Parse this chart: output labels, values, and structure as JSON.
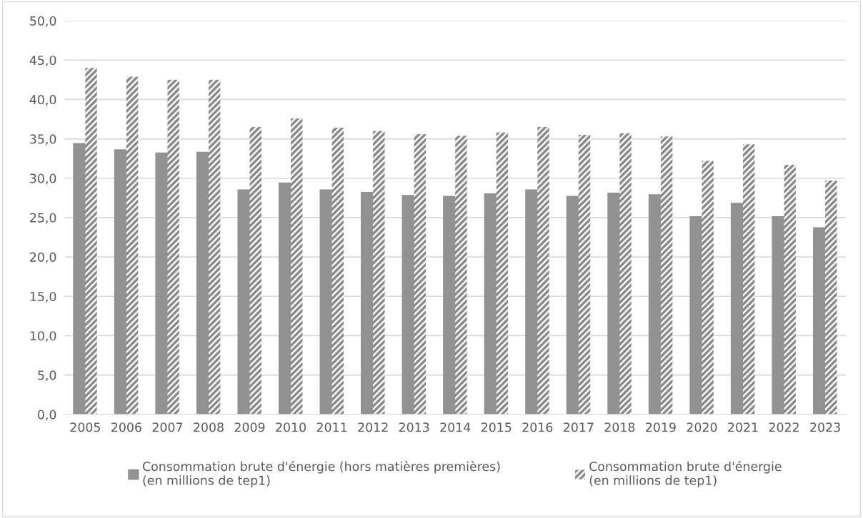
{
  "chart_data": {
    "type": "bar",
    "categories": [
      "2005",
      "2006",
      "2007",
      "2008",
      "2009",
      "2010",
      "2011",
      "2012",
      "2013",
      "2014",
      "2015",
      "2016",
      "2017",
      "2018",
      "2019",
      "2020",
      "2021",
      "2022",
      "2023"
    ],
    "series": [
      {
        "name": "Consommation brute d'énergie (hors matières premières) (en millions de tep1)",
        "color": "#929292",
        "values": [
          34.4,
          33.6,
          33.2,
          33.3,
          28.5,
          29.4,
          28.5,
          28.2,
          27.8,
          27.7,
          28.0,
          28.5,
          27.7,
          28.1,
          27.9,
          25.1,
          26.8,
          25.1,
          23.7
        ]
      },
      {
        "name": "Consommation brute d'énergie (en millions de tep1)",
        "color": "#8a8a8a",
        "values": [
          44.0,
          42.9,
          42.5,
          42.5,
          36.5,
          37.6,
          36.4,
          36.0,
          35.6,
          35.4,
          35.8,
          36.5,
          35.5,
          35.7,
          35.3,
          32.2,
          34.3,
          31.7,
          29.7
        ]
      }
    ],
    "ylim": [
      0,
      50
    ],
    "yticks": [
      {
        "value": 0,
        "label": "0,0"
      },
      {
        "value": 5,
        "label": "5,0"
      },
      {
        "value": 10,
        "label": "10,0"
      },
      {
        "value": 15,
        "label": "15,0"
      },
      {
        "value": 20,
        "label": "20,0"
      },
      {
        "value": 25,
        "label": "25,0"
      },
      {
        "value": 30,
        "label": "30,0"
      },
      {
        "value": 35,
        "label": "35,0"
      },
      {
        "value": 40,
        "label": "40,0"
      },
      {
        "value": 45,
        "label": "45,0"
      },
      {
        "value": 50,
        "label": "50,0"
      }
    ],
    "grid": "y",
    "legend": "bottom"
  }
}
